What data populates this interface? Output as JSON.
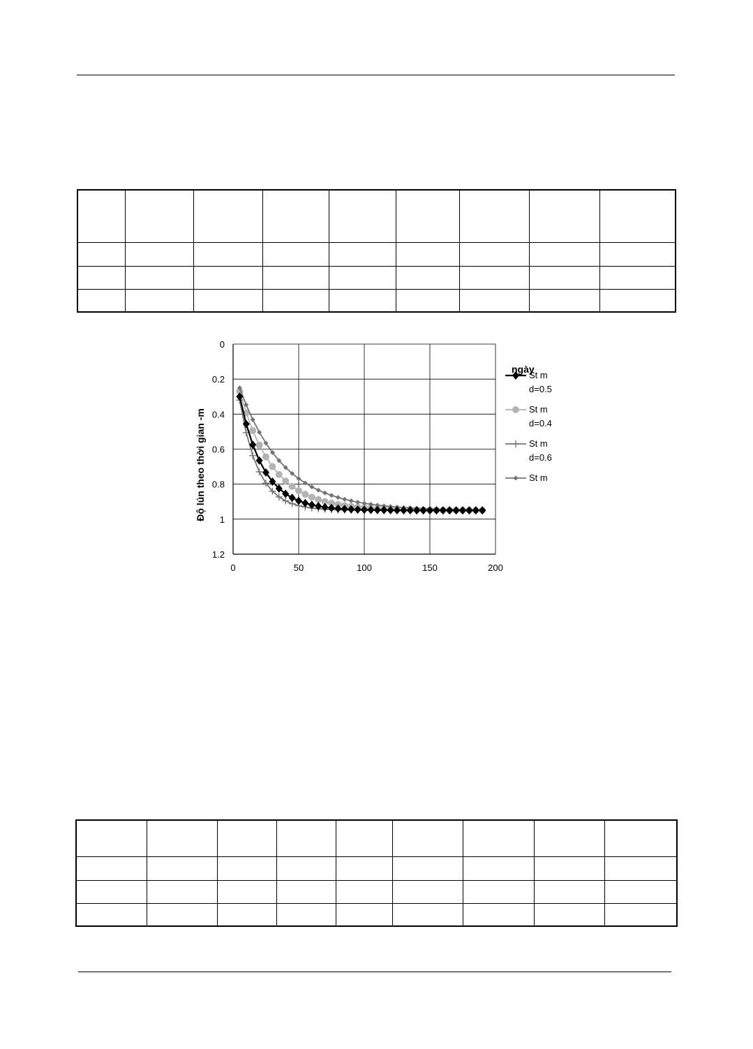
{
  "chart_data": {
    "type": "line",
    "xlabel": "ngày",
    "ylabel": "Độ lún theo thời gian -m",
    "xlim": [
      0,
      200
    ],
    "ylim": [
      0,
      1.2
    ],
    "y_inverted": true,
    "x_ticks": [
      0,
      50,
      100,
      150,
      200
    ],
    "y_ticks": [
      0,
      0.2,
      0.4,
      0.6,
      0.8,
      1,
      1.2
    ],
    "grid": "vertical and horizontal",
    "legend_position": "right",
    "series": [
      {
        "name": "St m d=0.5",
        "marker": "diamond-large",
        "color": "#000000",
        "s_final": 0.95,
        "s0": 0.3,
        "rate": 0.055,
        "x_start": 5,
        "step": 5,
        "x_end": 190
      },
      {
        "name": "St m d=0.4",
        "marker": "circle",
        "color": "#b3b3b3",
        "s_final": 0.95,
        "s0": 0.27,
        "rate": 0.04,
        "x_start": 5,
        "step": 5,
        "x_end": 190
      },
      {
        "name": "St m d=0.6",
        "marker": "plus",
        "color": "#737373",
        "s_final": 0.95,
        "s0": 0.32,
        "rate": 0.07,
        "x_start": 5,
        "step": 5,
        "x_end": 190
      },
      {
        "name": "St m",
        "marker": "diamond-small",
        "color": "#737373",
        "s_final": 0.95,
        "s0": 0.25,
        "rate": 0.03,
        "x_start": 5,
        "step": 5,
        "x_end": 190
      }
    ]
  },
  "legend": [
    {
      "line1": "St m",
      "line2": "d=0.5"
    },
    {
      "line1": "St m",
      "line2": "d=0.4"
    },
    {
      "line1": "St m",
      "line2": "d=0.6"
    },
    {
      "line1": "St m",
      "line2": ""
    }
  ]
}
